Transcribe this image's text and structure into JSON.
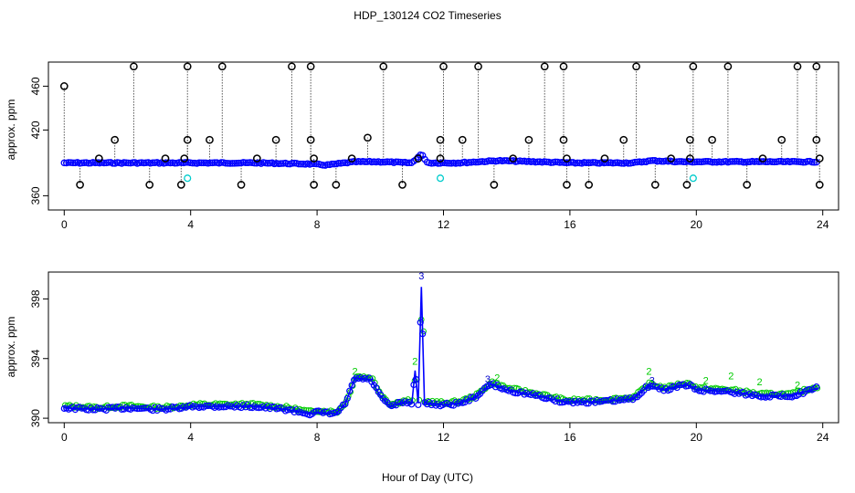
{
  "title": "HDP_130124  CO2 Timeseries",
  "xlabel": "Hour of Day (UTC)",
  "chart_data": [
    {
      "type": "scatter",
      "panel": "top",
      "ylabel": "approx. ppm",
      "xlim": [
        -0.5,
        24.5
      ],
      "ylim": [
        347,
        482
      ],
      "x_ticks": [
        0,
        4,
        8,
        12,
        16,
        20,
        24
      ],
      "y_ticks": [
        360,
        420,
        460
      ],
      "baseline_series": [
        {
          "x": 0,
          "y": 390
        },
        {
          "x": 2,
          "y": 390
        },
        {
          "x": 4,
          "y": 390
        },
        {
          "x": 6,
          "y": 390
        },
        {
          "x": 7.8,
          "y": 389
        },
        {
          "x": 8.3,
          "y": 388
        },
        {
          "x": 9.2,
          "y": 391
        },
        {
          "x": 10,
          "y": 391
        },
        {
          "x": 11,
          "y": 390
        },
        {
          "x": 11.3,
          "y": 398
        },
        {
          "x": 11.5,
          "y": 390
        },
        {
          "x": 12.5,
          "y": 390
        },
        {
          "x": 13.7,
          "y": 392
        },
        {
          "x": 15,
          "y": 391
        },
        {
          "x": 16,
          "y": 390
        },
        {
          "x": 18,
          "y": 390
        },
        {
          "x": 18.6,
          "y": 392
        },
        {
          "x": 19.6,
          "y": 391
        },
        {
          "x": 20,
          "y": 391
        },
        {
          "x": 23.8,
          "y": 391
        }
      ],
      "spikes": [
        {
          "x": 0.0,
          "y": 460
        },
        {
          "x": 0.5,
          "y": 370
        },
        {
          "x": 1.1,
          "y": 394
        },
        {
          "x": 1.6,
          "y": 411
        },
        {
          "x": 2.2,
          "y": 478
        },
        {
          "x": 2.7,
          "y": 370
        },
        {
          "x": 3.2,
          "y": 394
        },
        {
          "x": 3.7,
          "y": 370
        },
        {
          "x": 3.8,
          "y": 394
        },
        {
          "x": 3.9,
          "y": 411
        },
        {
          "x": 3.9,
          "y": 478
        },
        {
          "x": 4.6,
          "y": 411
        },
        {
          "x": 5.0,
          "y": 478
        },
        {
          "x": 5.6,
          "y": 370
        },
        {
          "x": 6.1,
          "y": 394
        },
        {
          "x": 6.7,
          "y": 411
        },
        {
          "x": 7.2,
          "y": 478
        },
        {
          "x": 7.8,
          "y": 478
        },
        {
          "x": 7.8,
          "y": 411
        },
        {
          "x": 7.9,
          "y": 394
        },
        {
          "x": 7.9,
          "y": 370
        },
        {
          "x": 8.6,
          "y": 370
        },
        {
          "x": 9.1,
          "y": 394
        },
        {
          "x": 9.6,
          "y": 413
        },
        {
          "x": 10.1,
          "y": 478
        },
        {
          "x": 10.7,
          "y": 370
        },
        {
          "x": 11.2,
          "y": 394
        },
        {
          "x": 11.9,
          "y": 411
        },
        {
          "x": 11.9,
          "y": 394
        },
        {
          "x": 12.0,
          "y": 478
        },
        {
          "x": 12.6,
          "y": 411
        },
        {
          "x": 13.1,
          "y": 478
        },
        {
          "x": 13.6,
          "y": 370
        },
        {
          "x": 14.2,
          "y": 394
        },
        {
          "x": 14.7,
          "y": 411
        },
        {
          "x": 15.2,
          "y": 478
        },
        {
          "x": 15.8,
          "y": 478
        },
        {
          "x": 15.8,
          "y": 411
        },
        {
          "x": 15.9,
          "y": 394
        },
        {
          "x": 15.9,
          "y": 370
        },
        {
          "x": 16.6,
          "y": 370
        },
        {
          "x": 17.1,
          "y": 394
        },
        {
          "x": 17.7,
          "y": 411
        },
        {
          "x": 18.1,
          "y": 478
        },
        {
          "x": 18.7,
          "y": 370
        },
        {
          "x": 19.2,
          "y": 394
        },
        {
          "x": 19.7,
          "y": 370
        },
        {
          "x": 19.8,
          "y": 394
        },
        {
          "x": 19.8,
          "y": 411
        },
        {
          "x": 19.9,
          "y": 478
        },
        {
          "x": 20.5,
          "y": 411
        },
        {
          "x": 21.0,
          "y": 478
        },
        {
          "x": 21.6,
          "y": 370
        },
        {
          "x": 22.1,
          "y": 394
        },
        {
          "x": 22.7,
          "y": 411
        },
        {
          "x": 23.2,
          "y": 478
        },
        {
          "x": 23.8,
          "y": 478
        },
        {
          "x": 23.8,
          "y": 411
        },
        {
          "x": 23.9,
          "y": 394
        },
        {
          "x": 23.9,
          "y": 370
        }
      ],
      "cyan_points": [
        {
          "x": 3.9,
          "y": 376
        },
        {
          "x": 11.9,
          "y": 376
        },
        {
          "x": 19.9,
          "y": 376
        }
      ],
      "colors": {
        "spike": "#000000",
        "series": "#0000ff",
        "cyan": "#00cccc",
        "green": "#00cc00"
      }
    },
    {
      "type": "line",
      "panel": "bottom",
      "ylabel": "approx. ppm",
      "xlim": [
        -0.5,
        24.5
      ],
      "ylim": [
        389.7,
        399.8
      ],
      "x_ticks": [
        0,
        4,
        8,
        12,
        16,
        20,
        24
      ],
      "y_ticks": [
        390,
        394,
        398
      ],
      "series": [
        {
          "values": [
            {
              "x": 0.0,
              "y": 390.7
            },
            {
              "x": 1.0,
              "y": 390.6
            },
            {
              "x": 2.0,
              "y": 390.7
            },
            {
              "x": 3.0,
              "y": 390.6
            },
            {
              "x": 3.8,
              "y": 390.7
            },
            {
              "x": 4.0,
              "y": 390.8
            },
            {
              "x": 5.0,
              "y": 390.8
            },
            {
              "x": 6.0,
              "y": 390.8
            },
            {
              "x": 7.0,
              "y": 390.6
            },
            {
              "x": 7.8,
              "y": 390.3
            },
            {
              "x": 8.0,
              "y": 390.4
            },
            {
              "x": 8.6,
              "y": 390.3
            },
            {
              "x": 8.9,
              "y": 391.0
            },
            {
              "x": 9.2,
              "y": 392.7
            },
            {
              "x": 9.7,
              "y": 392.6
            },
            {
              "x": 10.0,
              "y": 391.5
            },
            {
              "x": 10.3,
              "y": 390.8
            },
            {
              "x": 10.8,
              "y": 391.1
            },
            {
              "x": 11.0,
              "y": 391.0
            },
            {
              "x": 11.1,
              "y": 393.2
            },
            {
              "x": 11.2,
              "y": 391.0
            },
            {
              "x": 11.3,
              "y": 398.8
            },
            {
              "x": 11.4,
              "y": 391.0
            },
            {
              "x": 12.0,
              "y": 390.9
            },
            {
              "x": 12.5,
              "y": 391.0
            },
            {
              "x": 13.0,
              "y": 391.4
            },
            {
              "x": 13.5,
              "y": 392.3
            },
            {
              "x": 14.0,
              "y": 391.9
            },
            {
              "x": 15.0,
              "y": 391.5
            },
            {
              "x": 15.8,
              "y": 391.1
            },
            {
              "x": 16.0,
              "y": 391.1
            },
            {
              "x": 17.0,
              "y": 391.1
            },
            {
              "x": 18.0,
              "y": 391.3
            },
            {
              "x": 18.5,
              "y": 392.2
            },
            {
              "x": 19.0,
              "y": 391.9
            },
            {
              "x": 19.5,
              "y": 392.2
            },
            {
              "x": 19.8,
              "y": 392.2
            },
            {
              "x": 20.0,
              "y": 391.9
            },
            {
              "x": 21.0,
              "y": 391.8
            },
            {
              "x": 22.0,
              "y": 391.5
            },
            {
              "x": 23.0,
              "y": 391.5
            },
            {
              "x": 23.8,
              "y": 392.0
            }
          ]
        }
      ],
      "markers": [
        {
          "label": "2",
          "x": 9.2,
          "y": 392.9
        },
        {
          "label": "2",
          "x": 11.1,
          "y": 393.6
        },
        {
          "label": "3",
          "x": 11.3,
          "y": 399.3
        },
        {
          "label": "3",
          "x": 13.4,
          "y": 392.4
        },
        {
          "label": "2",
          "x": 13.7,
          "y": 392.5
        },
        {
          "label": "2",
          "x": 18.5,
          "y": 392.9
        },
        {
          "label": "3",
          "x": 18.6,
          "y": 392.3
        },
        {
          "label": "2",
          "x": 20.3,
          "y": 392.3
        },
        {
          "label": "2",
          "x": 21.1,
          "y": 392.6
        },
        {
          "label": "2",
          "x": 22.0,
          "y": 392.2
        },
        {
          "label": "2",
          "x": 23.2,
          "y": 392.0
        }
      ],
      "colors": {
        "line": "#0000ff",
        "circles": "#0000ff",
        "green": "#00cc00"
      }
    }
  ]
}
